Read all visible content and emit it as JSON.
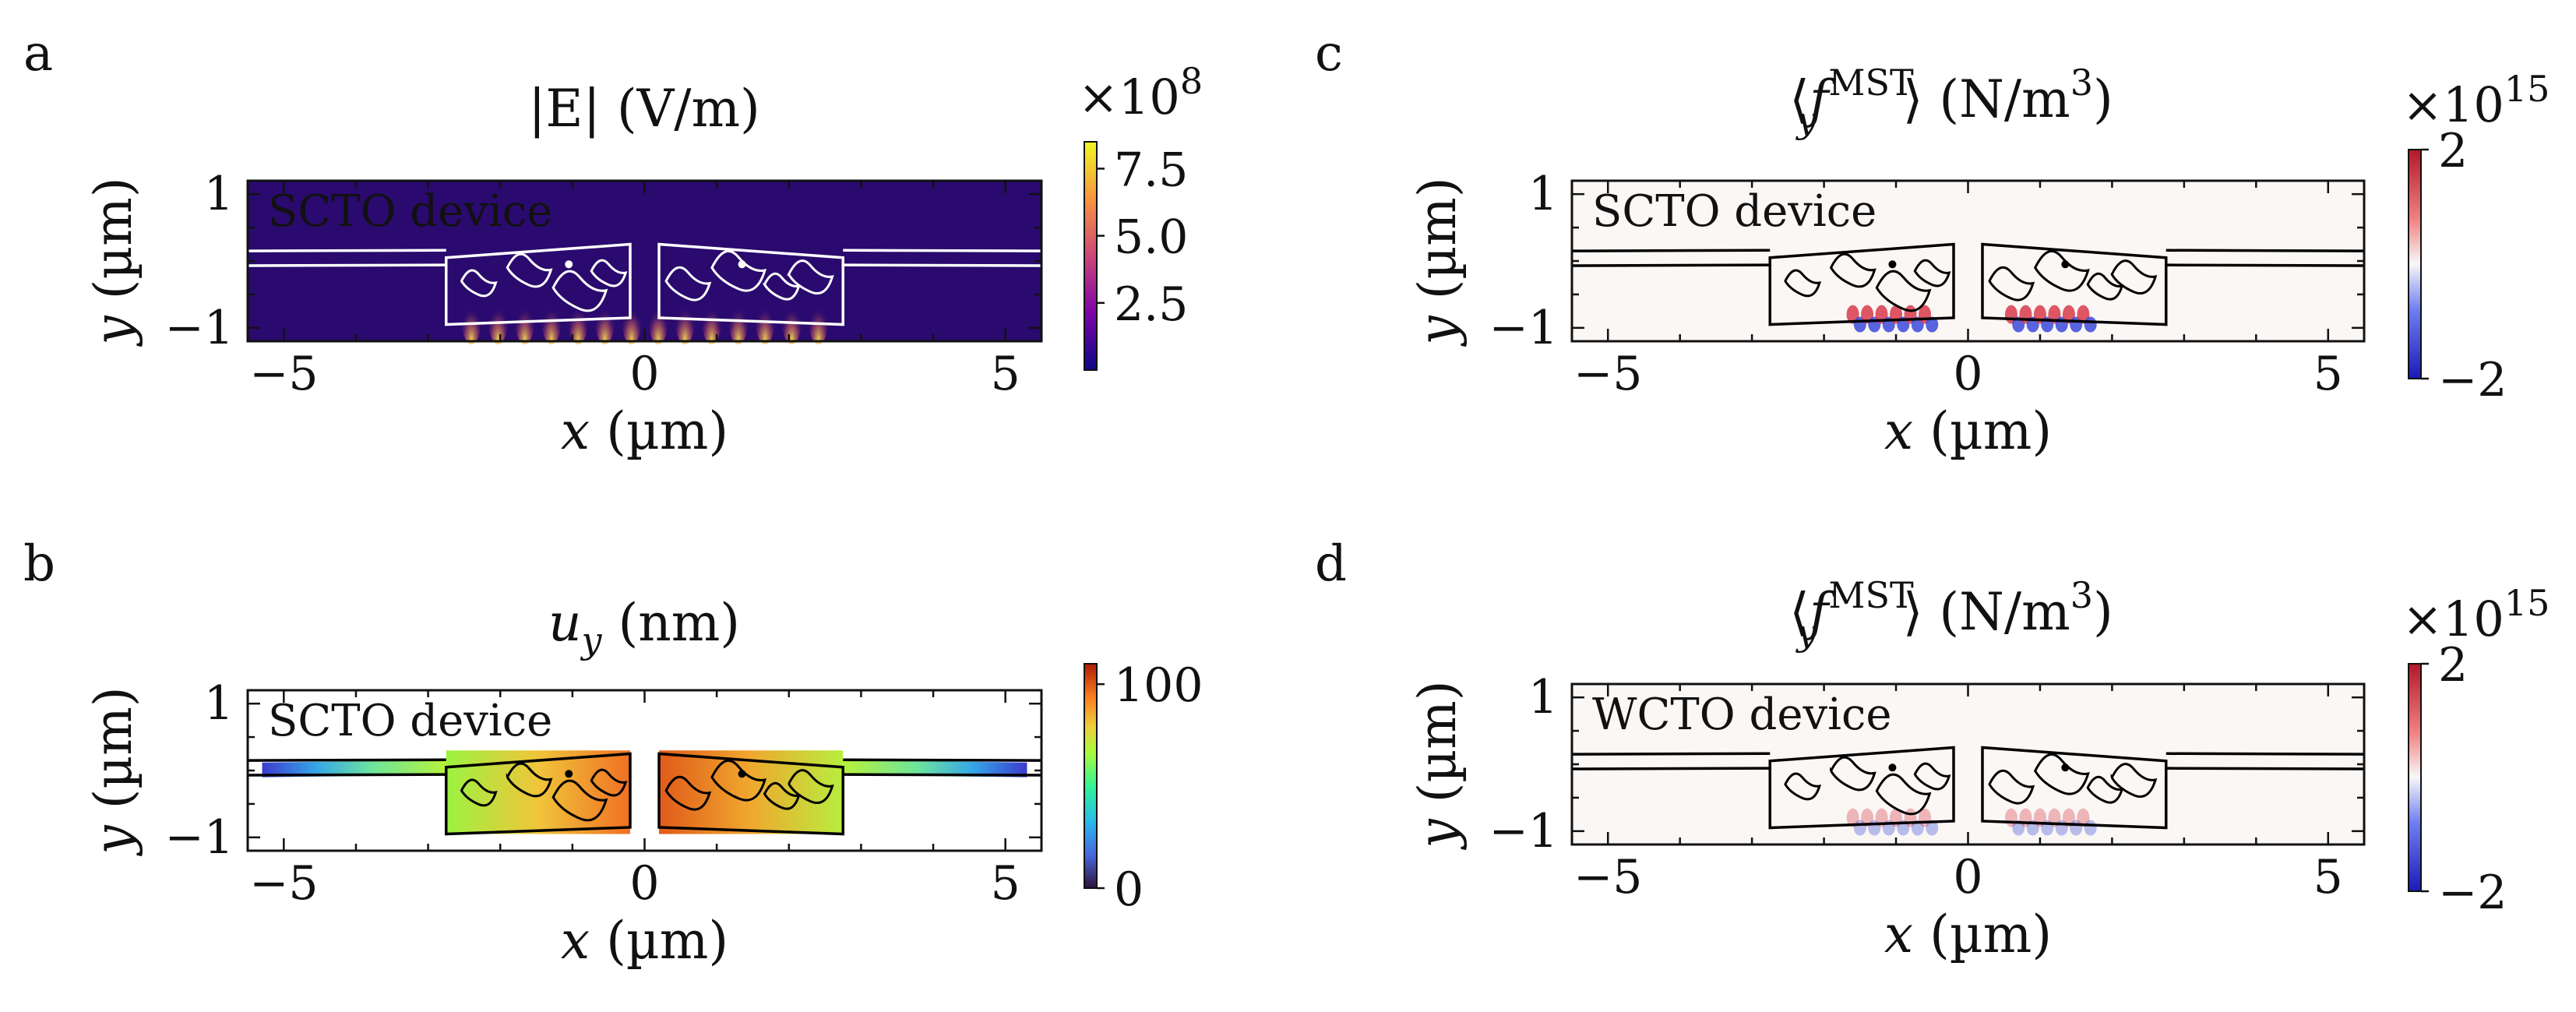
{
  "chart_data": [
    {
      "panel": "a",
      "type": "heatmap",
      "title": "|E| (V/m)",
      "xlabel": "x (µm)",
      "ylabel": "y (µm)",
      "xlim": [
        -5.5,
        5.5
      ],
      "ylim": [
        -1.2,
        1.2
      ],
      "xticks": [
        -5,
        0,
        5
      ],
      "xtick_labels": [
        "−5",
        "0",
        "5"
      ],
      "yticks": [
        1,
        -1
      ],
      "ytick_labels": [
        "1",
        "−1"
      ],
      "annotation": "SCTO device",
      "colorbar": {
        "colormap": "plasma",
        "multiplier": "×10",
        "multiplier_exp": "8",
        "ticks": [
          7.5,
          5.0,
          2.5
        ],
        "tick_labels": [
          "7.5",
          "5.0",
          "2.5"
        ],
        "range": [
          0,
          8.5
        ]
      },
      "colors": {
        "background": "#2a0a6e",
        "line": "#ffffff"
      }
    },
    {
      "panel": "b",
      "type": "heatmap",
      "title_main": "u",
      "title_sub": "y",
      "title_unit": " (nm)",
      "xlabel": "x (µm)",
      "ylabel": "y (µm)",
      "xlim": [
        -5.5,
        5.5
      ],
      "ylim": [
        -1.2,
        1.2
      ],
      "xticks": [
        -5,
        0,
        5
      ],
      "xtick_labels": [
        "−5",
        "0",
        "5"
      ],
      "yticks": [
        1,
        -1
      ],
      "ytick_labels": [
        "1",
        "−1"
      ],
      "annotation": "SCTO device",
      "colorbar": {
        "colormap": "turbo",
        "ticks": [
          100,
          0
        ],
        "tick_labels": [
          "100",
          "0"
        ],
        "range": [
          0,
          110
        ]
      },
      "colors": {
        "background": "#ffffff",
        "line": "#000000"
      }
    },
    {
      "panel": "c",
      "type": "heatmap",
      "title_lbr": "⟨",
      "title_f": "f",
      "title_sup": "MST",
      "title_sub": "y",
      "title_rbr": "⟩",
      "title_unit": " (N/m",
      "title_unit_exp": "3",
      "title_unit_close": ")",
      "xlabel": "x (µm)",
      "ylabel": "y (µm)",
      "xlim": [
        -5.5,
        5.5
      ],
      "ylim": [
        -1.2,
        1.2
      ],
      "xticks": [
        -5,
        0,
        5
      ],
      "xtick_labels": [
        "−5",
        "0",
        "5"
      ],
      "yticks": [
        1,
        -1
      ],
      "ytick_labels": [
        "1",
        "−1"
      ],
      "annotation": "SCTO device",
      "colorbar": {
        "colormap": "RdBu_r",
        "multiplier": "×10",
        "multiplier_exp": "15",
        "ticks": [
          2,
          -2
        ],
        "tick_labels": [
          "2",
          "−2"
        ],
        "range": [
          -2,
          2
        ]
      },
      "colors": {
        "background": "#faf7f5",
        "line": "#000000"
      }
    },
    {
      "panel": "d",
      "type": "heatmap",
      "title_lbr": "⟨",
      "title_f": "f",
      "title_sup": "MST",
      "title_sub": "y",
      "title_rbr": "⟩",
      "title_unit": " (N/m",
      "title_unit_exp": "3",
      "title_unit_close": ")",
      "xlabel": "x (µm)",
      "ylabel": "y (µm)",
      "xlim": [
        -5.5,
        5.5
      ],
      "ylim": [
        -1.2,
        1.2
      ],
      "xticks": [
        -5,
        0,
        5
      ],
      "xtick_labels": [
        "−5",
        "0",
        "5"
      ],
      "yticks": [
        1,
        -1
      ],
      "ytick_labels": [
        "1",
        "−1"
      ],
      "annotation": "WCTO device",
      "colorbar": {
        "colormap": "RdBu_r",
        "multiplier": "×10",
        "multiplier_exp": "15",
        "ticks": [
          2,
          -2
        ],
        "tick_labels": [
          "2",
          "−2"
        ],
        "range": [
          -2,
          2
        ]
      },
      "colors": {
        "background": "#faf7f5",
        "line": "#000000"
      }
    }
  ]
}
